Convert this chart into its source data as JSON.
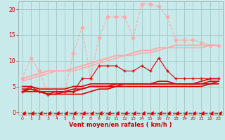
{
  "bg_color": "#c8eaea",
  "grid_color": "#a0c8c8",
  "xlabel": "Vent moyen/en rafales ( km/h )",
  "x_ticks": [
    0,
    1,
    2,
    3,
    4,
    5,
    6,
    7,
    8,
    9,
    10,
    11,
    12,
    13,
    14,
    15,
    16,
    17,
    18,
    19,
    20,
    21,
    22,
    23
  ],
  "ylim": [
    -0.5,
    21.5
  ],
  "y_ticks": [
    0,
    5,
    10,
    15,
    20
  ],
  "lines": [
    {
      "x": [
        0,
        1,
        2,
        3,
        4,
        5,
        6,
        7,
        8,
        9,
        10,
        11,
        12,
        13,
        14,
        15,
        16,
        17,
        18,
        19,
        20,
        21,
        22,
        23
      ],
      "y": [
        6.5,
        10.5,
        8.0,
        3.5,
        4.0,
        4.0,
        11.5,
        16.5,
        6.5,
        14.5,
        18.5,
        18.5,
        18.5,
        14.5,
        21.0,
        21.0,
        20.5,
        18.5,
        14.0,
        14.0,
        14.0,
        13.5,
        13.0,
        13.0
      ],
      "color": "#ffaaaa",
      "lw": 0.8,
      "marker": "D",
      "ms": 2.5,
      "ls": "--",
      "mfc": "#ffaaaa"
    },
    {
      "x": [
        0,
        1,
        2,
        3,
        4,
        5,
        6,
        7,
        8,
        9,
        10,
        11,
        12,
        13,
        14,
        15,
        16,
        17,
        18,
        19,
        20,
        21,
        22,
        23
      ],
      "y": [
        6.5,
        7.0,
        7.5,
        8.0,
        8.0,
        8.0,
        8.5,
        9.0,
        9.5,
        10.0,
        10.5,
        11.0,
        11.0,
        11.5,
        12.0,
        12.0,
        12.5,
        12.5,
        13.0,
        13.0,
        13.0,
        13.0,
        13.0,
        13.0
      ],
      "color": "#ffaaaa",
      "lw": 1.5,
      "marker": null,
      "ms": 0,
      "ls": "-",
      "mfc": "#ffaaaa"
    },
    {
      "x": [
        0,
        1,
        2,
        3,
        4,
        5,
        6,
        7,
        8,
        9,
        10,
        11,
        12,
        13,
        14,
        15,
        16,
        17,
        18,
        19,
        20,
        21,
        22,
        23
      ],
      "y": [
        6.0,
        6.5,
        7.0,
        7.5,
        8.0,
        8.0,
        8.0,
        8.5,
        9.0,
        9.5,
        10.0,
        10.5,
        11.0,
        11.0,
        11.5,
        11.5,
        12.0,
        12.5,
        12.5,
        12.5,
        12.5,
        12.5,
        13.0,
        13.0
      ],
      "color": "#ffaaaa",
      "lw": 1.2,
      "marker": null,
      "ms": 0,
      "ls": "-",
      "mfc": "#ffaaaa"
    },
    {
      "x": [
        0,
        1,
        2,
        3,
        4,
        5,
        6,
        7,
        8,
        9,
        10,
        11,
        12,
        13,
        14,
        15,
        16,
        17,
        18,
        19,
        20,
        21,
        22,
        23
      ],
      "y": [
        4.0,
        5.0,
        4.0,
        3.5,
        4.0,
        4.0,
        4.0,
        6.5,
        6.5,
        9.0,
        9.0,
        9.0,
        8.0,
        8.0,
        9.0,
        8.0,
        10.5,
        8.0,
        6.5,
        6.5,
        6.5,
        6.5,
        6.5,
        6.5
      ],
      "color": "#dd0000",
      "lw": 0.8,
      "marker": "+",
      "ms": 3.5,
      "ls": "-",
      "mfc": "#dd0000"
    },
    {
      "x": [
        0,
        1,
        2,
        3,
        4,
        5,
        6,
        7,
        8,
        9,
        10,
        11,
        12,
        13,
        14,
        15,
        16,
        17,
        18,
        19,
        20,
        21,
        22,
        23
      ],
      "y": [
        5.0,
        5.0,
        4.5,
        4.5,
        4.5,
        4.5,
        5.0,
        5.0,
        5.5,
        5.5,
        5.5,
        5.5,
        5.5,
        5.5,
        5.5,
        5.5,
        6.0,
        6.0,
        5.5,
        5.5,
        5.5,
        6.0,
        6.5,
        6.5
      ],
      "color": "#dd0000",
      "lw": 1.2,
      "marker": null,
      "ms": 0,
      "ls": "-",
      "mfc": "#dd0000"
    },
    {
      "x": [
        0,
        1,
        2,
        3,
        4,
        5,
        6,
        7,
        8,
        9,
        10,
        11,
        12,
        13,
        14,
        15,
        16,
        17,
        18,
        19,
        20,
        21,
        22,
        23
      ],
      "y": [
        4.5,
        4.5,
        4.0,
        4.0,
        4.0,
        4.0,
        4.5,
        4.5,
        5.0,
        5.0,
        5.0,
        5.5,
        5.5,
        5.5,
        5.5,
        5.5,
        5.5,
        5.5,
        5.5,
        5.5,
        5.5,
        5.5,
        6.0,
        6.0
      ],
      "color": "#dd0000",
      "lw": 1.2,
      "marker": null,
      "ms": 0,
      "ls": "-",
      "mfc": "#dd0000"
    },
    {
      "x": [
        0,
        1,
        2,
        3,
        4,
        5,
        6,
        7,
        8,
        9,
        10,
        11,
        12,
        13,
        14,
        15,
        16,
        17,
        18,
        19,
        20,
        21,
        22,
        23
      ],
      "y": [
        4.0,
        4.5,
        4.0,
        3.5,
        3.5,
        4.0,
        4.0,
        4.5,
        5.0,
        5.0,
        5.0,
        5.0,
        5.5,
        5.5,
        5.5,
        5.5,
        5.5,
        5.5,
        5.5,
        5.5,
        5.5,
        5.5,
        5.5,
        6.0
      ],
      "color": "#dd0000",
      "lw": 1.2,
      "marker": null,
      "ms": 0,
      "ls": "-",
      "mfc": "#dd0000"
    },
    {
      "x": [
        0,
        1,
        2,
        3,
        4,
        5,
        6,
        7,
        8,
        9,
        10,
        11,
        12,
        13,
        14,
        15,
        16,
        17,
        18,
        19,
        20,
        21,
        22,
        23
      ],
      "y": [
        4.0,
        4.0,
        4.0,
        3.5,
        3.5,
        3.5,
        3.5,
        3.5,
        4.0,
        4.5,
        4.5,
        5.0,
        5.0,
        5.0,
        5.0,
        5.0,
        5.0,
        5.0,
        5.0,
        5.0,
        5.0,
        5.0,
        5.5,
        5.5
      ],
      "color": "#dd0000",
      "lw": 1.2,
      "marker": null,
      "ms": 0,
      "ls": "-",
      "mfc": "#dd0000"
    },
    {
      "x": [
        0,
        1,
        2,
        3,
        4,
        5,
        6,
        7,
        8,
        9,
        10,
        11,
        12,
        13,
        14,
        15,
        16,
        17,
        18,
        19,
        20,
        21,
        22,
        23
      ],
      "y": [
        -0.2,
        -0.2,
        -0.2,
        -0.2,
        -0.2,
        -0.2,
        -0.2,
        -0.2,
        -0.2,
        -0.2,
        -0.2,
        -0.2,
        -0.2,
        -0.2,
        -0.2,
        -0.2,
        -0.2,
        -0.2,
        -0.2,
        -0.2,
        -0.2,
        -0.2,
        -0.2,
        -0.2
      ],
      "color": "#dd0000",
      "lw": 1.0,
      "marker": 4,
      "ms": 4,
      "ls": "--",
      "mfc": "#dd0000"
    }
  ]
}
